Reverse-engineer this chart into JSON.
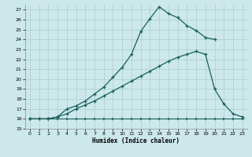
{
  "xlabel": "Humidex (Indice chaleur)",
  "bg_color": "#cce8ea",
  "grid_color": "#aacccc",
  "line_color": "#1a5f5a",
  "xlim": [
    -0.5,
    23.5
  ],
  "ylim": [
    15,
    27.5
  ],
  "xticks": [
    0,
    1,
    2,
    3,
    4,
    5,
    6,
    7,
    8,
    9,
    10,
    11,
    12,
    13,
    14,
    15,
    16,
    17,
    18,
    19,
    20,
    21,
    22,
    23
  ],
  "yticks": [
    15,
    16,
    17,
    18,
    19,
    20,
    21,
    22,
    23,
    24,
    25,
    26,
    27
  ],
  "line1_x": [
    0,
    1,
    2,
    3,
    4,
    5,
    6,
    7,
    8,
    9,
    10,
    11,
    12,
    13,
    14,
    15,
    16,
    17,
    18,
    19,
    20
  ],
  "line1_y": [
    16,
    16,
    16,
    16.2,
    17.0,
    17.3,
    17.8,
    18.5,
    19.2,
    20.2,
    21.2,
    22.5,
    24.8,
    26.1,
    27.3,
    26.6,
    26.2,
    25.4,
    24.9,
    24.2,
    24.0
  ],
  "line2_x": [
    0,
    1,
    2,
    3,
    4,
    5,
    6,
    7,
    8,
    9,
    10,
    11,
    12,
    13,
    14,
    15,
    16,
    17,
    18,
    19,
    20,
    21,
    22,
    23
  ],
  "line2_y": [
    16,
    16,
    16,
    16,
    16,
    16,
    16,
    16,
    16,
    16,
    16,
    16,
    16,
    16,
    16,
    16,
    16,
    16,
    16,
    16,
    16,
    16,
    16,
    16
  ],
  "line3_x": [
    0,
    2,
    3,
    4,
    5,
    6,
    7,
    8,
    9,
    10,
    11,
    12,
    13,
    14,
    15,
    16,
    17,
    18,
    19,
    20,
    21,
    22,
    23
  ],
  "line3_y": [
    16,
    16,
    16.2,
    16.5,
    17.0,
    17.4,
    17.8,
    18.3,
    18.8,
    19.3,
    19.8,
    20.3,
    20.8,
    21.3,
    21.8,
    22.2,
    22.5,
    22.8,
    22.5,
    19.0,
    17.5,
    16.5,
    16.2
  ]
}
